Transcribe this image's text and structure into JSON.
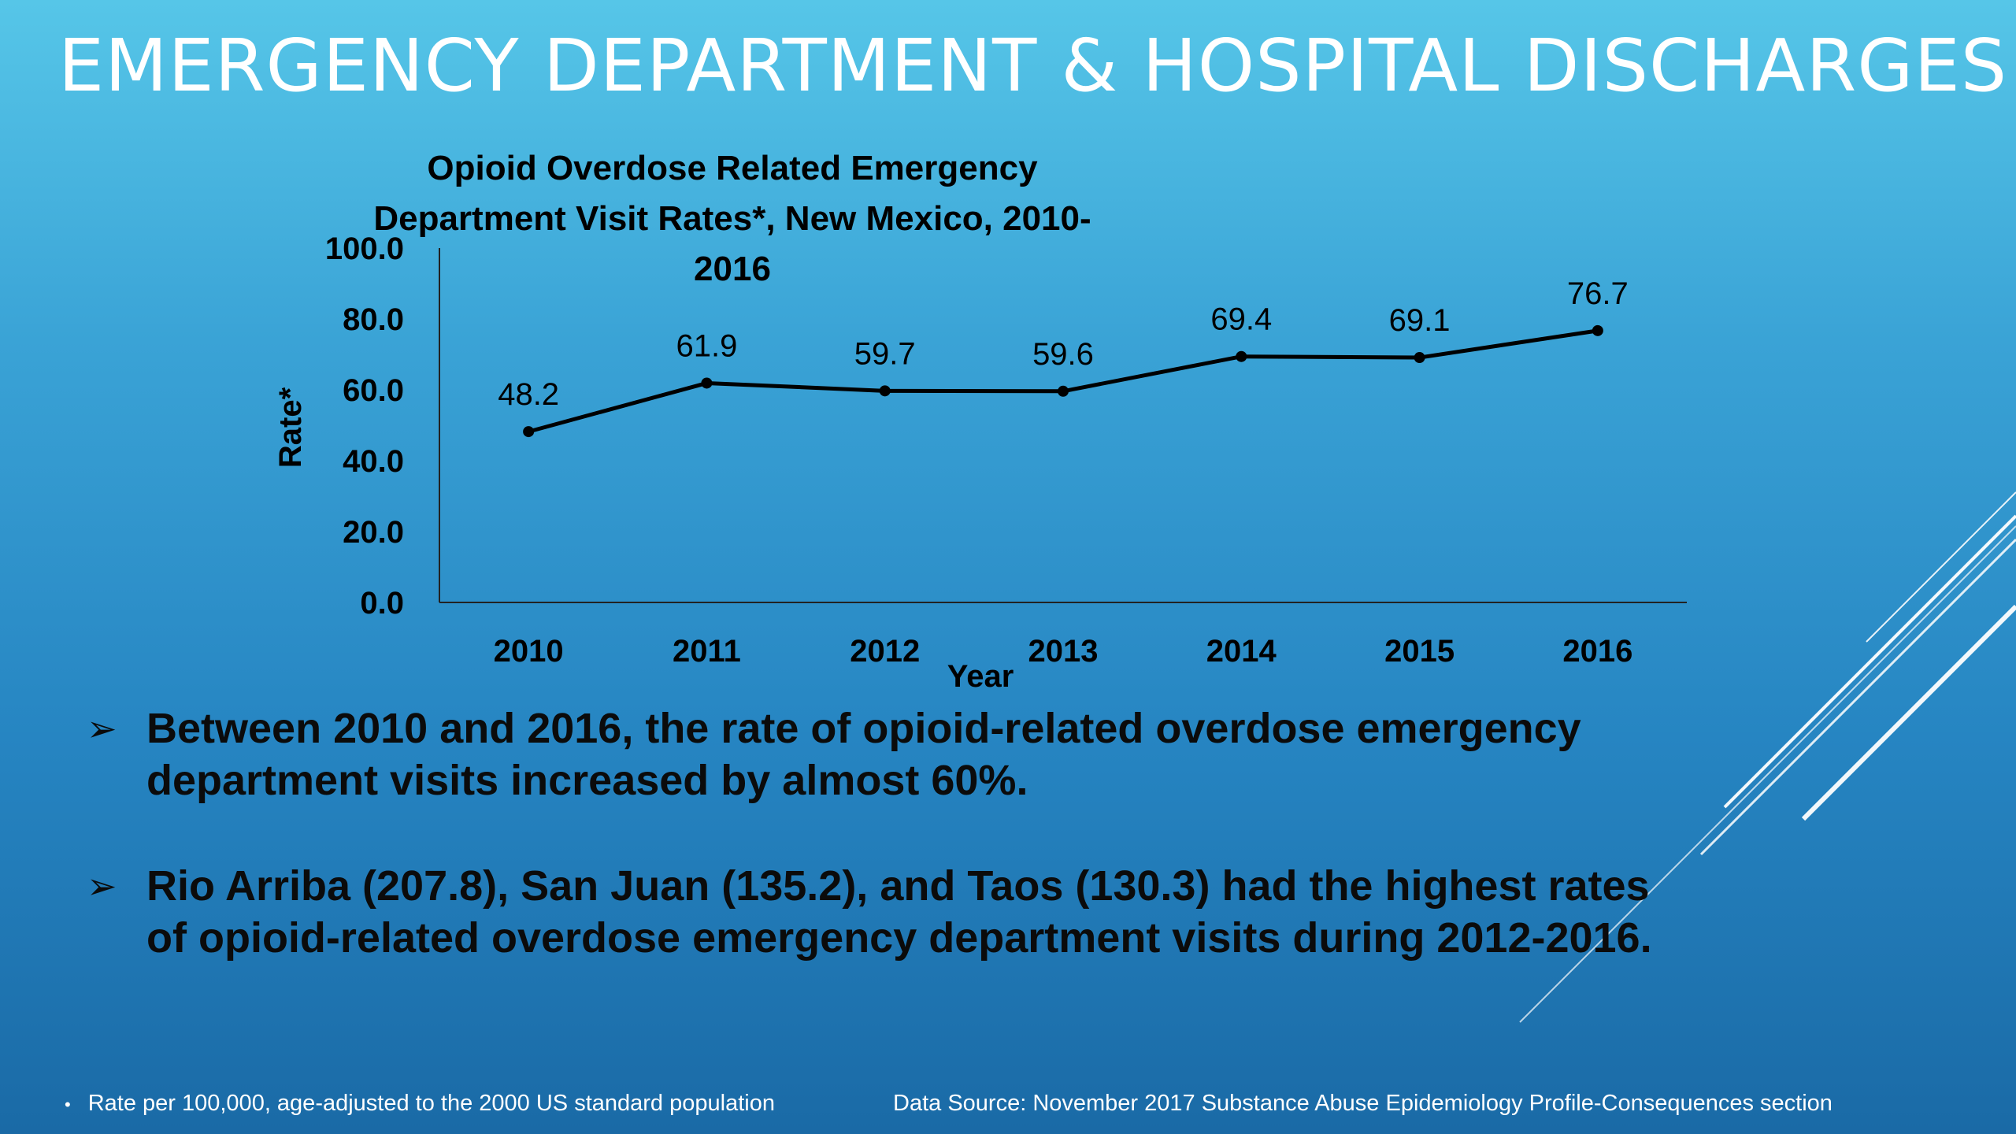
{
  "slide": {
    "title": "EMERGENCY DEPARTMENT & HOSPITAL DISCHARGES",
    "bullet_icon": "arrow-bullet-icon",
    "bullets": [
      "Between 2010 and 2016, the rate of opioid-related overdose emergency department visits increased by almost 60%.",
      "Rio Arriba (207.8), San Juan (135.2), and Taos (130.3) had the highest rates of opioid-related overdose emergency department visits during 2012-2016."
    ],
    "footnote": "Rate per 100,000, age-adjusted to the 2000 US standard population",
    "source": "Data Source: November 2017 Substance Abuse Epidemiology Profile-Consequences section",
    "colors": {
      "text": "#000000",
      "title": "#ffffff",
      "accent": "#ffffff"
    }
  },
  "chart_data": {
    "type": "line",
    "title": "Opioid Overdose Related Emergency Department Visit Rates*, New Mexico, 2010-2016",
    "xlabel": "Year",
    "ylabel": "Rate*",
    "categories": [
      "2010",
      "2011",
      "2012",
      "2013",
      "2014",
      "2015",
      "2016"
    ],
    "series": [
      {
        "values": [
          48.2,
          61.9,
          59.7,
          59.6,
          69.4,
          69.1,
          76.7
        ]
      }
    ],
    "data_labels": [
      "48.2",
      "61.9",
      "59.7",
      "59.6",
      "69.4",
      "69.1",
      "76.7"
    ],
    "ylim": [
      0,
      100
    ],
    "yticks": [
      "0.0",
      "20.0",
      "40.0",
      "60.0",
      "80.0",
      "100.0"
    ],
    "grid": false,
    "legend": "none",
    "line_color": "#000000"
  }
}
